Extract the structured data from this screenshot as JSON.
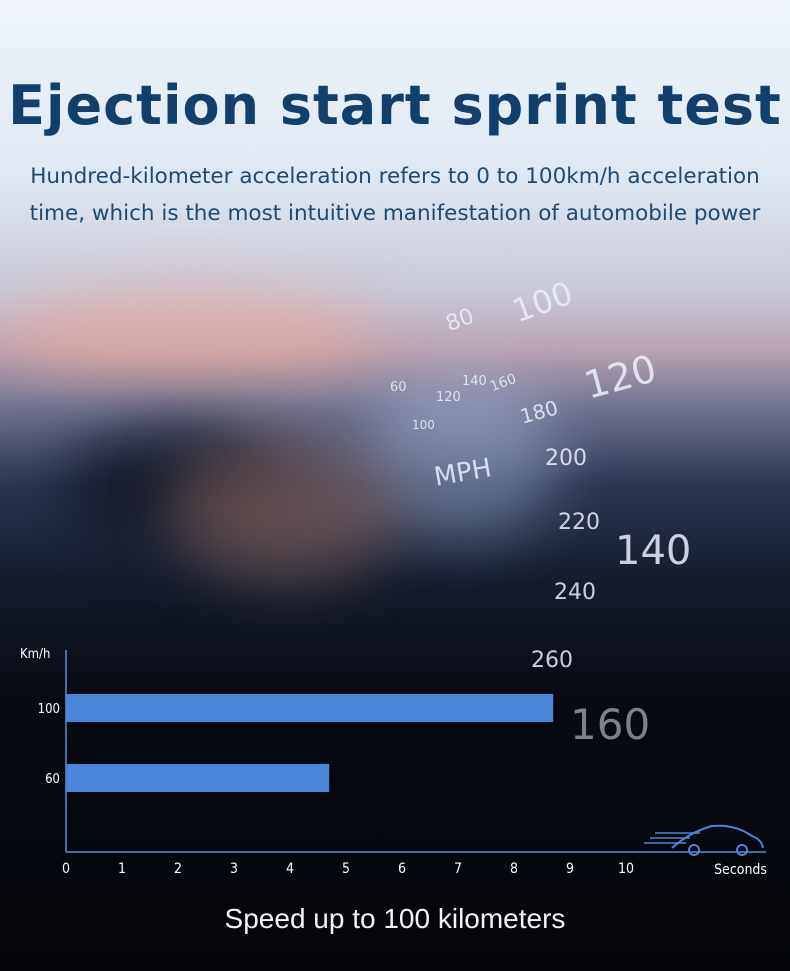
{
  "header": {
    "title": "Ejection start sprint test",
    "subtitle_line1": "Hundred-kilometer acceleration refers to 0 to 100km/h acceleration",
    "subtitle_line2": "time, which is the most intuitive manifestation of automobile power"
  },
  "background_hud": {
    "speeds": [
      "80",
      "100",
      "120",
      "140",
      "160",
      "180",
      "200",
      "220",
      "240",
      "260",
      "160",
      "60",
      "100",
      "120",
      "140"
    ],
    "unit": "MPH"
  },
  "chart_data": {
    "type": "bar",
    "orientation": "horizontal",
    "categories": [
      "100",
      "60"
    ],
    "values": [
      8.7,
      4.7
    ],
    "xlabel": "Seconds",
    "ylabel": "Km/h",
    "xlim": [
      0,
      10
    ],
    "xticks": [
      "0",
      "1",
      "2",
      "3",
      "4",
      "5",
      "6",
      "7",
      "8",
      "9",
      "10"
    ],
    "bar_color": "#4a86d8",
    "axis_color": "#5b8fd6",
    "grid": false
  },
  "footer": {
    "caption": "Speed up to 100 kilometers"
  },
  "colors": {
    "title": "#123f6b",
    "subtitle": "#1e4a72"
  }
}
